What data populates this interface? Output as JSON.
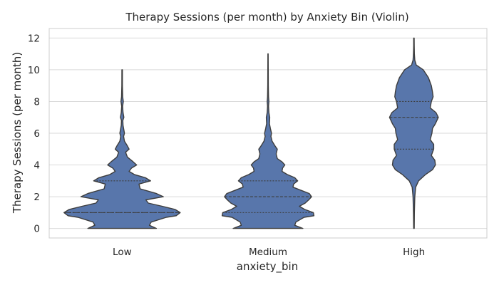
{
  "chart_data": {
    "type": "violin",
    "title": "Therapy Sessions (per month) by Anxiety Bin (Violin)",
    "xlabel": "anxiety_bin",
    "ylabel": "Therapy Sessions (per month)",
    "ylim": [
      -0.6,
      12.6
    ],
    "yticks": [
      0,
      2,
      4,
      6,
      8,
      10,
      12
    ],
    "grid": "horizontal",
    "fill_color": "#5876ab",
    "edge_color": "#3d3d3d",
    "categories": [
      "Low",
      "Medium",
      "High"
    ],
    "violins": [
      {
        "category": "Low",
        "min": 0,
        "max": 10,
        "quartiles": [
          1,
          1,
          3
        ],
        "profile": [
          [
            0,
            0.59
          ],
          [
            0.2,
            0.47
          ],
          [
            0.4,
            0.5
          ],
          [
            0.7,
            0.76
          ],
          [
            0.8,
            0.93
          ],
          [
            1,
            1.0
          ],
          [
            1.2,
            0.91
          ],
          [
            1.4,
            0.69
          ],
          [
            1.6,
            0.45
          ],
          [
            1.8,
            0.41
          ],
          [
            2,
            0.71
          ],
          [
            2.2,
            0.59
          ],
          [
            2.5,
            0.31
          ],
          [
            2.8,
            0.29
          ],
          [
            3,
            0.49
          ],
          [
            3.2,
            0.4
          ],
          [
            3.4,
            0.21
          ],
          [
            3.6,
            0.12
          ],
          [
            3.8,
            0.16
          ],
          [
            4,
            0.25
          ],
          [
            4.2,
            0.19
          ],
          [
            4.5,
            0.09
          ],
          [
            4.8,
            0.06
          ],
          [
            5,
            0.12
          ],
          [
            5.2,
            0.09
          ],
          [
            5.5,
            0.04
          ],
          [
            5.8,
            0.025
          ],
          [
            6,
            0.04
          ],
          [
            6.2,
            0.03
          ],
          [
            6.5,
            0.015
          ],
          [
            6.8,
            0.012
          ],
          [
            7,
            0.03
          ],
          [
            7.3,
            0.015
          ],
          [
            7.7,
            0.008
          ],
          [
            8,
            0.02
          ],
          [
            8.3,
            0.01
          ],
          [
            9,
            0.005
          ],
          [
            10,
            0.004
          ]
        ]
      },
      {
        "category": "Medium",
        "min": 0,
        "max": 11,
        "quartiles": [
          1,
          2,
          3
        ],
        "profile": [
          [
            0,
            0.6
          ],
          [
            0.2,
            0.46
          ],
          [
            0.4,
            0.48
          ],
          [
            0.7,
            0.62
          ],
          [
            0.8,
            0.79
          ],
          [
            1,
            0.78
          ],
          [
            1.2,
            0.63
          ],
          [
            1.4,
            0.54
          ],
          [
            1.6,
            0.64
          ],
          [
            1.8,
            0.7
          ],
          [
            2,
            0.75
          ],
          [
            2.2,
            0.71
          ],
          [
            2.4,
            0.57
          ],
          [
            2.6,
            0.43
          ],
          [
            2.8,
            0.44
          ],
          [
            3,
            0.51
          ],
          [
            3.2,
            0.46
          ],
          [
            3.4,
            0.33
          ],
          [
            3.6,
            0.24
          ],
          [
            3.8,
            0.25
          ],
          [
            4,
            0.29
          ],
          [
            4.2,
            0.24
          ],
          [
            4.4,
            0.16
          ],
          [
            4.7,
            0.14
          ],
          [
            5,
            0.16
          ],
          [
            5.2,
            0.12
          ],
          [
            5.5,
            0.07
          ],
          [
            5.8,
            0.05
          ],
          [
            6,
            0.06
          ],
          [
            6.3,
            0.04
          ],
          [
            6.6,
            0.025
          ],
          [
            7,
            0.03
          ],
          [
            7.3,
            0.015
          ],
          [
            7.7,
            0.008
          ],
          [
            8,
            0.015
          ],
          [
            8.3,
            0.008
          ],
          [
            9,
            0.005
          ],
          [
            10,
            0.004
          ],
          [
            11,
            0.003
          ]
        ]
      },
      {
        "category": "High",
        "min": 0,
        "max": 12,
        "quartiles": [
          5,
          7,
          8
        ],
        "profile": [
          [
            0,
            0.005
          ],
          [
            1,
            0.008
          ],
          [
            2,
            0.015
          ],
          [
            2.6,
            0.03
          ],
          [
            3,
            0.08
          ],
          [
            3.4,
            0.2
          ],
          [
            3.7,
            0.32
          ],
          [
            4,
            0.37
          ],
          [
            4.3,
            0.36
          ],
          [
            4.6,
            0.3
          ],
          [
            5,
            0.34
          ],
          [
            5.3,
            0.34
          ],
          [
            5.6,
            0.28
          ],
          [
            6,
            0.31
          ],
          [
            6.3,
            0.32
          ],
          [
            6.6,
            0.37
          ],
          [
            7,
            0.42
          ],
          [
            7.3,
            0.38
          ],
          [
            7.6,
            0.28
          ],
          [
            8,
            0.3
          ],
          [
            8.3,
            0.33
          ],
          [
            8.6,
            0.32
          ],
          [
            9,
            0.3
          ],
          [
            9.5,
            0.25
          ],
          [
            10,
            0.16
          ],
          [
            10.3,
            0.04
          ],
          [
            10.6,
            0.015
          ],
          [
            11,
            0.008
          ],
          [
            11.5,
            0.005
          ],
          [
            12,
            0.004
          ]
        ]
      }
    ]
  }
}
